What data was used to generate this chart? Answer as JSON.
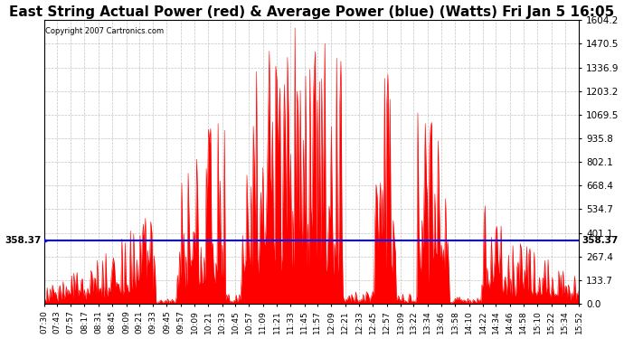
{
  "title": "East String Actual Power (red) & Average Power (blue) (Watts) Fri Jan 5 16:05",
  "copyright": "Copyright 2007 Cartronics.com",
  "avg_power": 358.37,
  "ymax": 1604.2,
  "yticks": [
    0.0,
    133.7,
    267.4,
    401.1,
    534.7,
    668.4,
    802.1,
    935.8,
    1069.5,
    1203.2,
    1336.9,
    1470.5,
    1604.2
  ],
  "bg_color": "#ffffff",
  "fill_color": "#ff0000",
  "line_color": "#0000ff",
  "grid_color": "#aaaaaa",
  "x_labels": [
    "07:30",
    "07:43",
    "07:57",
    "08:17",
    "08:31",
    "08:45",
    "09:09",
    "09:21",
    "09:33",
    "09:45",
    "09:57",
    "10:09",
    "10:21",
    "10:33",
    "10:45",
    "10:57",
    "11:09",
    "11:21",
    "11:33",
    "11:45",
    "11:57",
    "12:09",
    "12:21",
    "12:33",
    "12:45",
    "12:57",
    "13:09",
    "13:22",
    "13:34",
    "13:46",
    "13:58",
    "14:10",
    "14:22",
    "14:34",
    "14:46",
    "14:58",
    "15:10",
    "15:22",
    "15:34",
    "15:52"
  ],
  "title_fontsize": 11,
  "tick_fontsize": 7.5,
  "label_fontsize": 6.5
}
